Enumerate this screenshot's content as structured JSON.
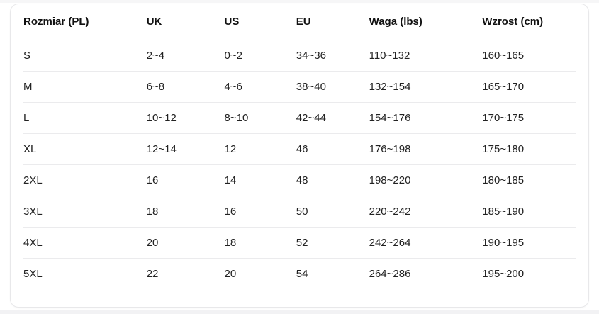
{
  "colors": {
    "card_background": "#ffffff",
    "card_border": "#e8e8ea",
    "header_divider": "#d6d6d8",
    "row_divider": "#ebebed",
    "header_text": "#111111",
    "cell_text": "#222222",
    "page_strip_top": "#f6f6f7",
    "page_strip_bottom": "#f2f2f4"
  },
  "table": {
    "columns": [
      {
        "key": "rozmiar-pl",
        "label": "Rozmiar (PL)"
      },
      {
        "key": "uk",
        "label": "UK"
      },
      {
        "key": "us",
        "label": "US"
      },
      {
        "key": "eu",
        "label": "EU"
      },
      {
        "key": "waga-lbs",
        "label": "Waga (lbs)"
      },
      {
        "key": "wzrost-cm",
        "label": "Wzrost (cm)"
      }
    ],
    "rows": [
      [
        "S",
        "2~4",
        "0~2",
        "34~36",
        "110~132",
        "160~165"
      ],
      [
        "M",
        "6~8",
        "4~6",
        "38~40",
        "132~154",
        "165~170"
      ],
      [
        "L",
        "10~12",
        "8~10",
        "42~44",
        "154~176",
        "170~175"
      ],
      [
        "XL",
        "12~14",
        "12",
        "46",
        "176~198",
        "175~180"
      ],
      [
        "2XL",
        "16",
        "14",
        "48",
        "198~220",
        "180~185"
      ],
      [
        "3XL",
        "18",
        "16",
        "50",
        "220~242",
        "185~190"
      ],
      [
        "4XL",
        "20",
        "18",
        "52",
        "242~264",
        "190~195"
      ],
      [
        "5XL",
        "22",
        "20",
        "54",
        "264~286",
        "195~200"
      ]
    ]
  }
}
